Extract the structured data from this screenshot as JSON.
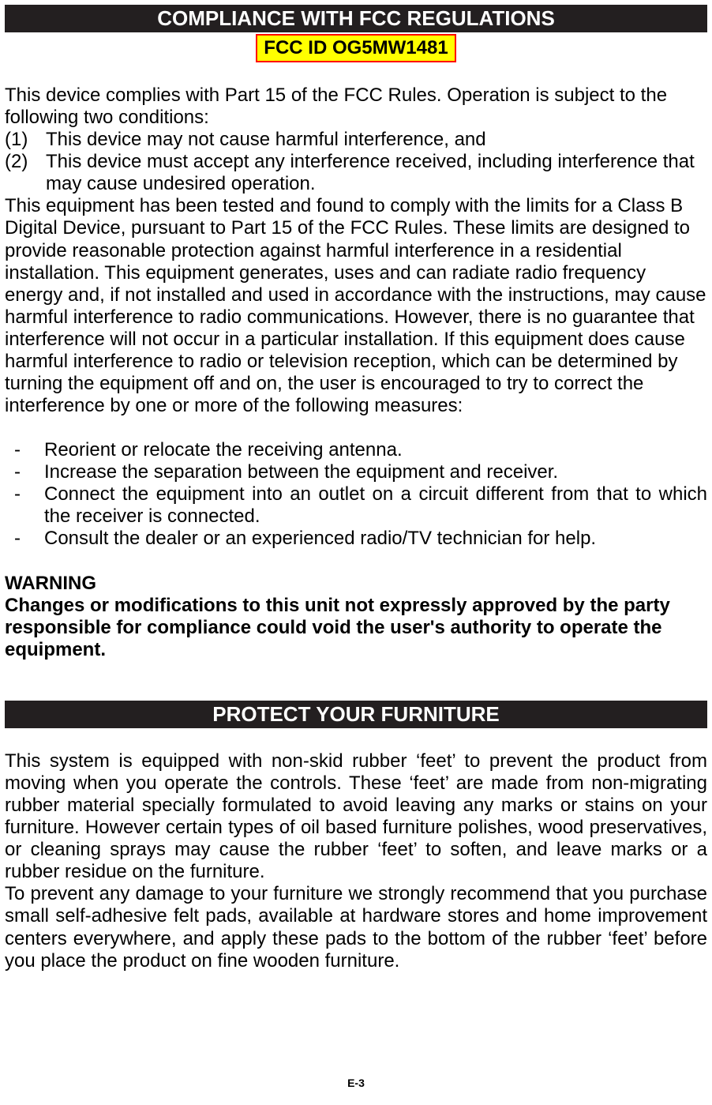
{
  "compliance": {
    "header": "COMPLIANCE WITH FCC REGULATIONS",
    "fcc_id": "FCC ID OG5MW1481",
    "intro": "This device complies with Part 15 of the FCC Rules. Operation is subject to the following two conditions:",
    "conditions": [
      {
        "num": "(1)",
        "text": "This device may not cause harmful interference, and"
      },
      {
        "num": "(2)",
        "text": "This device must accept any interference received, including interference that may cause undesired operation."
      }
    ],
    "long_paragraph": "This equipment has been tested and found to comply with the limits for a Class B Digital Device, pursuant to Part 15 of the FCC Rules. These limits are designed to provide reasonable protection against harmful interference in a residential installation. This equipment generates, uses and can radiate radio frequency energy and, if not installed and used in accordance with the instructions, may cause harmful interference to radio communications. However, there is no guarantee that interference will not occur in a particular installation. If this equipment does cause harmful interference to radio or television reception, which can be determined by turning the equipment off and on, the user is encouraged to try to correct the interference by one or more of the following measures:",
    "measures": [
      "Reorient or relocate the receiving antenna.",
      "Increase the separation between the equipment and receiver.",
      "Connect the equipment into an outlet on a circuit different from that to which the receiver is connected.",
      "Consult the dealer or an experienced radio/TV technician for help."
    ],
    "warning_title": "WARNING",
    "warning_text": "Changes or modifications to this unit not expressly approved by the party responsible for compliance could void the user's authority to operate the equipment."
  },
  "furniture": {
    "header": "PROTECT YOUR FURNITURE",
    "para1": "This system is equipped with non-skid rubber ‘feet’ to prevent the product from moving when you operate the controls. These ‘feet’ are made from non-migrating rubber material specially formulated to avoid leaving any marks or stains on your furniture. However certain types of oil based furniture polishes, wood preservatives,  or cleaning sprays may cause the rubber ‘feet’ to soften, and leave marks or a rubber residue on the furniture.",
    "para2": "To prevent  any damage to your furniture  we strongly recommend  that you purchase  small self-adhesive felt pads, available at hardware stores and home improvement  centers everywhere,  and apply these pads to the bottom of the rubber ‘feet’ before you place the product on fine wooden furniture."
  },
  "page_number": "E-3",
  "colors": {
    "header_bg": "#231f20",
    "header_fg": "#ffffff",
    "fcc_bg": "#ffff00",
    "fcc_border": "#ff0000",
    "text": "#000000",
    "page_bg": "#ffffff"
  }
}
